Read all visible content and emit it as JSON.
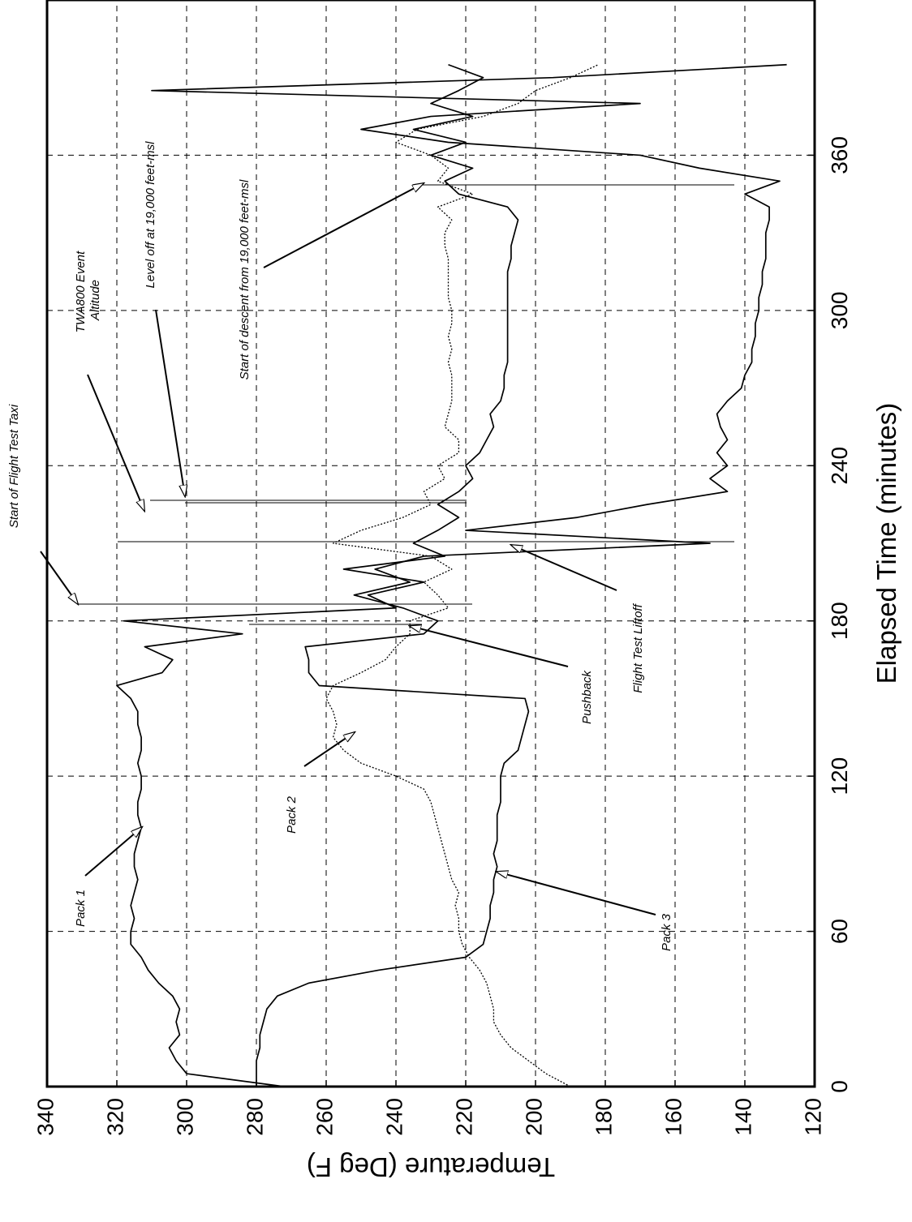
{
  "chart_data": {
    "type": "line",
    "x_label": "Elapsed Time (minutes)",
    "y_label": "Temperature (Deg F)",
    "xlim": [
      0,
      420
    ],
    "xticks": [
      0,
      60,
      120,
      180,
      240,
      300,
      360
    ],
    "ylim": [
      120,
      340
    ],
    "yticks": [
      120,
      140,
      160,
      180,
      200,
      220,
      240,
      260,
      280,
      300,
      320,
      340
    ],
    "grid": true,
    "x": [
      0,
      5,
      10,
      15,
      20,
      25,
      30,
      35,
      40,
      45,
      50,
      55,
      60,
      65,
      70,
      75,
      80,
      85,
      90,
      95,
      100,
      105,
      110,
      115,
      120,
      125,
      130,
      135,
      140,
      145,
      150,
      155,
      160,
      165,
      170,
      175,
      180,
      185,
      190,
      195,
      200,
      205,
      210,
      215,
      220,
      225,
      230,
      235,
      240,
      245,
      250,
      255,
      260,
      265,
      270,
      275,
      280,
      285,
      290,
      295,
      300,
      305,
      310,
      315,
      320,
      325,
      330,
      335,
      340,
      345,
      350,
      355,
      360,
      365,
      370,
      375,
      380,
      385,
      390,
      395
    ],
    "series": [
      {
        "name": "Pack 1",
        "color": "#000000",
        "linestyle": "solid",
        "values": [
          272,
          300,
          303,
          305,
          302,
          303,
          302,
          304,
          308,
          311,
          313,
          316,
          316,
          315,
          316,
          315,
          314,
          315,
          315,
          314,
          313,
          314,
          314,
          313,
          313,
          314,
          313,
          313,
          314,
          314,
          316,
          320,
          307,
          304,
          312,
          284,
          318,
          240,
          248,
          232,
          255,
          226,
          235,
          228,
          222,
          228,
          222,
          218,
          220,
          216,
          214,
          212,
          213,
          210,
          209,
          209,
          208,
          208,
          208,
          208,
          208,
          208,
          208,
          208,
          207,
          207,
          206,
          205,
          208,
          222,
          226,
          218,
          230,
          220,
          235,
          218,
          230,
          222,
          215,
          225
        ]
      },
      {
        "name": "Pack 2",
        "color": "#000000",
        "linestyle": "dotted",
        "values": [
          190,
          197,
          202,
          207,
          210,
          212,
          212,
          213,
          214,
          216,
          219,
          221,
          222,
          222,
          223,
          222,
          224,
          225,
          226,
          227,
          228,
          229,
          230,
          232,
          240,
          250,
          255,
          258,
          257,
          258,
          260,
          258,
          250,
          243,
          240,
          236,
          236,
          225,
          228,
          232,
          224,
          230,
          258,
          250,
          238,
          230,
          232,
          226,
          228,
          222,
          222,
          226,
          225,
          224,
          224,
          224,
          225,
          224,
          225,
          224,
          224,
          225,
          225,
          225,
          225,
          226,
          226,
          224,
          228,
          218,
          228,
          225,
          230,
          240,
          234,
          215,
          205,
          200,
          190,
          182
        ]
      },
      {
        "name": "Pack 3",
        "color": "#000000",
        "linestyle": "solid",
        "values": [
          280,
          280,
          280,
          279,
          279,
          278,
          277,
          274,
          265,
          245,
          220,
          215,
          214,
          213,
          213,
          212,
          212,
          211,
          212,
          211,
          211,
          211,
          210,
          210,
          210,
          209,
          205,
          204,
          203,
          202,
          203,
          262,
          265,
          265,
          266,
          232,
          228,
          238,
          252,
          236,
          246,
          232,
          150,
          220,
          188,
          168,
          145,
          150,
          145,
          148,
          145,
          147,
          148,
          145,
          141,
          140,
          138,
          138,
          137,
          137,
          136,
          136,
          135,
          135,
          134,
          134,
          134,
          133,
          133,
          140,
          130,
          153,
          170,
          225,
          250,
          230,
          170,
          310,
          195,
          128
        ]
      }
    ],
    "annotations": [
      {
        "lines": [
          "Pack 1"
        ]
      },
      {
        "lines": [
          "Pack 2"
        ]
      },
      {
        "lines": [
          "Pack 3"
        ]
      },
      {
        "lines": [
          "Pushback"
        ]
      },
      {
        "lines": [
          "Flight Test Liftoff"
        ]
      },
      {
        "lines": [
          "Start of Flight Test Taxi"
        ]
      },
      {
        "lines": [
          "TWA800 Event",
          "Altitude"
        ]
      },
      {
        "lines": [
          "Level off at 19,000 feet-msl"
        ]
      },
      {
        "lines": [
          "Start of descent from 19,000 feet-msl"
        ]
      }
    ]
  }
}
